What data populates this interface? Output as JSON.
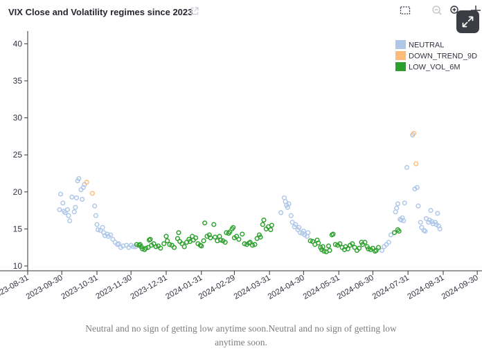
{
  "header": {
    "title": "VIX Close and Volatility regimes since 2023",
    "icons": [
      "external-link-icon",
      "box-select-icon",
      "zoom-out-icon",
      "zoom-in-icon",
      "pan-icon",
      "fullscreen-icon"
    ]
  },
  "caption": "Neutral and no sign of getting low anytime soon.Neutral and no sign of getting low anytime soon.",
  "colors": {
    "NEUTRAL": "#aec7e8",
    "DOWN_TREND_9D": "#ffbb78",
    "LOW_VOL_6M": "#2ca02c",
    "axis": "#333333",
    "expand_button": "#3b3d45"
  },
  "chart_data": {
    "type": "scatter",
    "title": "VIX Close and Volatility regimes since 2023",
    "xlabel": "",
    "ylabel": "",
    "ylim": [
      9,
      41.5
    ],
    "xlim": [
      "2023-08-20",
      "2024-09-30"
    ],
    "grid": false,
    "legend_position": "top-right",
    "y_ticks": [
      10,
      15,
      20,
      25,
      30,
      35,
      40
    ],
    "x_ticks": [
      "2023-08-31",
      "2023-09-30",
      "2023-10-31",
      "2023-11-30",
      "2023-12-31",
      "2024-01-31",
      "2024-02-29",
      "2024-03-31",
      "2024-04-30",
      "2024-05-31",
      "2024-06-30",
      "2024-07-31",
      "2024-08-31",
      "2024-09-30"
    ],
    "x_tick_labels": [
      "2023-08-31",
      "2023-09-30",
      "2023-10-31",
      "2023-11-30",
      "2023-12-31",
      "2024-01-31",
      "2024-02-29",
      "2024-03-31",
      "2024-04-30",
      "2024-05-31",
      "2024-06-30",
      "2024-07-31",
      "2024-08-31",
      "2024-09-30"
    ],
    "series": [
      {
        "name": "NEUTRAL",
        "points": [
          [
            "2023-09-28",
            17.6
          ],
          [
            "2023-09-29",
            19.7
          ],
          [
            "2023-10-01",
            18.5
          ],
          [
            "2023-10-02",
            17.4
          ],
          [
            "2023-10-03",
            17.2
          ],
          [
            "2023-10-05",
            17.6
          ],
          [
            "2023-10-06",
            16.8
          ],
          [
            "2023-10-07",
            16.1
          ],
          [
            "2023-10-09",
            19.3
          ],
          [
            "2023-10-11",
            17.3
          ],
          [
            "2023-10-12",
            17.9
          ],
          [
            "2023-10-13",
            19.2
          ],
          [
            "2023-10-14",
            21.5
          ],
          [
            "2023-10-15",
            21.8
          ],
          [
            "2023-10-17",
            20.3
          ],
          [
            "2023-10-18",
            19.0
          ],
          [
            "2023-10-19",
            20.6
          ],
          [
            "2023-10-20",
            21.0
          ],
          [
            "2023-10-29",
            18.1
          ],
          [
            "2023-10-30",
            16.8
          ],
          [
            "2023-10-31",
            15.6
          ],
          [
            "2023-11-01",
            14.9
          ],
          [
            "2023-11-03",
            14.8
          ],
          [
            "2023-11-05",
            15.2
          ],
          [
            "2023-11-06",
            14.5
          ],
          [
            "2023-11-07",
            14.1
          ],
          [
            "2023-11-09",
            14.3
          ],
          [
            "2023-11-10",
            14.0
          ],
          [
            "2023-11-12",
            14.2
          ],
          [
            "2023-11-14",
            13.6
          ],
          [
            "2023-11-16",
            13.2
          ],
          [
            "2023-11-18",
            12.9
          ],
          [
            "2023-11-19",
            13.0
          ],
          [
            "2023-11-21",
            12.5
          ],
          [
            "2023-11-23",
            12.7
          ],
          [
            "2023-11-26",
            12.8
          ],
          [
            "2023-11-28",
            12.5
          ],
          [
            "2023-11-30",
            12.8
          ],
          [
            "2023-12-02",
            12.6
          ],
          [
            "2023-12-04",
            12.6
          ],
          [
            "2024-04-10",
            17.2
          ],
          [
            "2024-04-13",
            19.2
          ],
          [
            "2024-04-14",
            18.7
          ],
          [
            "2024-04-15",
            18.2
          ],
          [
            "2024-04-16",
            17.9
          ],
          [
            "2024-04-17",
            18.4
          ],
          [
            "2024-04-19",
            16.8
          ],
          [
            "2024-04-20",
            15.9
          ],
          [
            "2024-04-22",
            15.3
          ],
          [
            "2024-04-23",
            15.6
          ],
          [
            "2024-04-25",
            14.9
          ],
          [
            "2024-04-26",
            15.2
          ],
          [
            "2024-04-27",
            14.5
          ],
          [
            "2024-04-29",
            14.4
          ],
          [
            "2024-04-30",
            14.7
          ],
          [
            "2024-05-01",
            14.2
          ],
          [
            "2024-05-03",
            14.0
          ],
          [
            "2024-05-04",
            14.5
          ],
          [
            "2024-07-08",
            12.1
          ],
          [
            "2024-07-10",
            12.6
          ],
          [
            "2024-07-12",
            12.9
          ],
          [
            "2024-07-14",
            13.2
          ],
          [
            "2024-07-16",
            14.2
          ],
          [
            "2024-07-20",
            17.3
          ],
          [
            "2024-07-21",
            17.8
          ],
          [
            "2024-07-22",
            18.4
          ],
          [
            "2024-07-24",
            16.3
          ],
          [
            "2024-07-25",
            16.2
          ],
          [
            "2024-07-26",
            16.5
          ],
          [
            "2024-07-27",
            16.1
          ],
          [
            "2024-07-28",
            18.5
          ],
          [
            "2024-07-30",
            23.3
          ],
          [
            "2024-08-04",
            27.7
          ],
          [
            "2024-08-06",
            20.4
          ],
          [
            "2024-08-08",
            20.6
          ],
          [
            "2024-08-09",
            18.1
          ],
          [
            "2024-08-11",
            15.9
          ],
          [
            "2024-08-12",
            15.2
          ],
          [
            "2024-08-14",
            14.8
          ],
          [
            "2024-08-15",
            14.7
          ],
          [
            "2024-08-16",
            16.4
          ],
          [
            "2024-08-18",
            15.9
          ],
          [
            "2024-08-19",
            16.2
          ],
          [
            "2024-08-20",
            17.5
          ],
          [
            "2024-08-21",
            16.0
          ],
          [
            "2024-08-22",
            15.7
          ],
          [
            "2024-08-24",
            15.9
          ],
          [
            "2024-08-25",
            15.6
          ],
          [
            "2024-08-26",
            17.1
          ],
          [
            "2024-08-27",
            15.4
          ],
          [
            "2024-08-28",
            15.0
          ]
        ]
      },
      {
        "name": "DOWN_TREND_9D",
        "points": [
          [
            "2023-10-22",
            21.3
          ],
          [
            "2023-10-27",
            19.8
          ],
          [
            "2024-08-05",
            27.9
          ],
          [
            "2024-08-07",
            23.8
          ]
        ]
      },
      {
        "name": "LOW_VOL_6M",
        "points": [
          [
            "2023-12-05",
            12.9
          ],
          [
            "2023-12-07",
            12.8
          ],
          [
            "2023-12-08",
            12.9
          ],
          [
            "2023-12-09",
            12.6
          ],
          [
            "2023-12-10",
            12.3
          ],
          [
            "2023-12-12",
            12.2
          ],
          [
            "2023-12-13",
            12.4
          ],
          [
            "2023-12-15",
            12.5
          ],
          [
            "2023-12-16",
            13.5
          ],
          [
            "2023-12-17",
            13.6
          ],
          [
            "2023-12-18",
            12.8
          ],
          [
            "2023-12-20",
            13.0
          ],
          [
            "2023-12-22",
            12.6
          ],
          [
            "2023-12-24",
            12.7
          ],
          [
            "2023-12-26",
            12.4
          ],
          [
            "2023-12-29",
            13.0
          ],
          [
            "2023-12-31",
            14.0
          ],
          [
            "2024-01-01",
            13.4
          ],
          [
            "2024-01-03",
            12.9
          ],
          [
            "2024-01-05",
            12.8
          ],
          [
            "2024-01-07",
            12.5
          ],
          [
            "2024-01-10",
            13.7
          ],
          [
            "2024-01-11",
            14.5
          ],
          [
            "2024-01-12",
            13.3
          ],
          [
            "2024-01-14",
            13.0
          ],
          [
            "2024-01-16",
            12.6
          ],
          [
            "2024-01-18",
            13.2
          ],
          [
            "2024-01-20",
            13.6
          ],
          [
            "2024-01-21",
            13.3
          ],
          [
            "2024-01-23",
            14.0
          ],
          [
            "2024-01-24",
            13.5
          ],
          [
            "2024-01-26",
            13.8
          ],
          [
            "2024-01-28",
            13.0
          ],
          [
            "2024-01-30",
            12.8
          ],
          [
            "2024-01-31",
            12.7
          ],
          [
            "2024-02-02",
            13.4
          ],
          [
            "2024-02-03",
            15.8
          ],
          [
            "2024-02-05",
            14.0
          ],
          [
            "2024-02-07",
            14.2
          ],
          [
            "2024-02-08",
            13.8
          ],
          [
            "2024-02-11",
            15.6
          ],
          [
            "2024-02-12",
            13.9
          ],
          [
            "2024-02-14",
            13.4
          ],
          [
            "2024-02-16",
            14.0
          ],
          [
            "2024-02-17",
            13.5
          ],
          [
            "2024-02-19",
            13.4
          ],
          [
            "2024-02-21",
            13.2
          ],
          [
            "2024-02-22",
            14.5
          ],
          [
            "2024-02-24",
            14.4
          ],
          [
            "2024-02-25",
            14.6
          ],
          [
            "2024-02-27",
            15.0
          ],
          [
            "2024-02-28",
            15.2
          ],
          [
            "2024-02-29",
            13.8
          ],
          [
            "2024-03-02",
            14.0
          ],
          [
            "2024-03-04",
            13.6
          ],
          [
            "2024-03-07",
            14.3
          ],
          [
            "2024-03-09",
            13.0
          ],
          [
            "2024-03-11",
            12.9
          ],
          [
            "2024-03-13",
            13.1
          ],
          [
            "2024-03-14",
            13.2
          ],
          [
            "2024-03-16",
            12.8
          ],
          [
            "2024-03-18",
            12.9
          ],
          [
            "2024-03-20",
            13.7
          ],
          [
            "2024-03-22",
            14.2
          ],
          [
            "2024-03-23",
            13.9
          ],
          [
            "2024-03-25",
            15.6
          ],
          [
            "2024-03-26",
            16.2
          ],
          [
            "2024-03-28",
            15.0
          ],
          [
            "2024-03-30",
            15.3
          ],
          [
            "2024-04-01",
            14.9
          ],
          [
            "2024-04-02",
            15.5
          ],
          [
            "2024-05-06",
            13.4
          ],
          [
            "2024-05-08",
            13.3
          ],
          [
            "2024-05-10",
            12.9
          ],
          [
            "2024-05-12",
            13.5
          ],
          [
            "2024-05-13",
            13.1
          ],
          [
            "2024-05-15",
            12.5
          ],
          [
            "2024-05-16",
            12.2
          ],
          [
            "2024-05-17",
            12.6
          ],
          [
            "2024-05-18",
            12.0
          ],
          [
            "2024-05-20",
            11.9
          ],
          [
            "2024-05-22",
            12.7
          ],
          [
            "2024-05-23",
            12.1
          ],
          [
            "2024-05-25",
            14.2
          ],
          [
            "2024-05-26",
            14.3
          ],
          [
            "2024-05-28",
            12.9
          ],
          [
            "2024-05-30",
            12.8
          ],
          [
            "2024-06-01",
            13.0
          ],
          [
            "2024-06-03",
            12.5
          ],
          [
            "2024-06-05",
            12.2
          ],
          [
            "2024-06-06",
            12.6
          ],
          [
            "2024-06-08",
            12.3
          ],
          [
            "2024-06-10",
            12.8
          ],
          [
            "2024-06-12",
            13.0
          ],
          [
            "2024-06-14",
            12.5
          ],
          [
            "2024-06-16",
            12.1
          ],
          [
            "2024-06-18",
            12.4
          ],
          [
            "2024-06-20",
            13.2
          ],
          [
            "2024-06-21",
            12.9
          ],
          [
            "2024-06-23",
            13.2
          ],
          [
            "2024-06-25",
            12.6
          ],
          [
            "2024-06-26",
            12.3
          ],
          [
            "2024-06-28",
            12.2
          ],
          [
            "2024-06-30",
            12.4
          ],
          [
            "2024-07-02",
            12.0
          ],
          [
            "2024-07-03",
            12.1
          ],
          [
            "2024-07-05",
            12.5
          ],
          [
            "2024-07-19",
            14.5
          ],
          [
            "2024-07-22",
            14.9
          ],
          [
            "2024-07-23",
            14.7
          ]
        ]
      }
    ]
  }
}
